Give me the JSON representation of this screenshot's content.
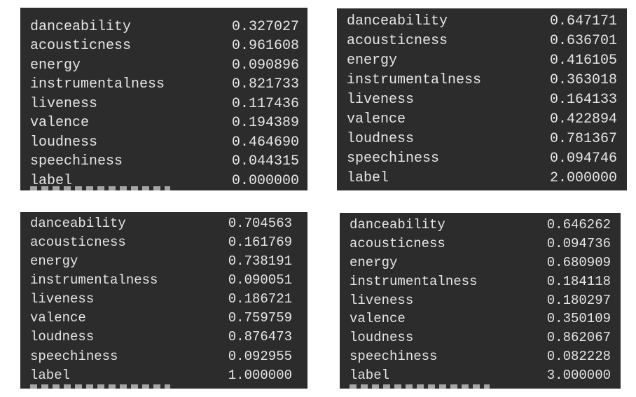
{
  "panels": [
    {
      "rows": [
        {
          "key": "danceability",
          "value": "0.327027"
        },
        {
          "key": "acousticness",
          "value": "0.961608"
        },
        {
          "key": "energy",
          "value": "0.090896"
        },
        {
          "key": "instrumentalness",
          "value": "0.821733"
        },
        {
          "key": "liveness",
          "value": "0.117436"
        },
        {
          "key": "valence",
          "value": "0.194389"
        },
        {
          "key": "loudness",
          "value": "0.464690"
        },
        {
          "key": "speechiness",
          "value": "0.044315"
        },
        {
          "key": "label",
          "value": "0.000000"
        }
      ]
    },
    {
      "rows": [
        {
          "key": "danceability",
          "value": "0.647171"
        },
        {
          "key": "acousticness",
          "value": "0.636701"
        },
        {
          "key": "energy",
          "value": "0.416105"
        },
        {
          "key": "instrumentalness",
          "value": "0.363018"
        },
        {
          "key": "liveness",
          "value": "0.164133"
        },
        {
          "key": "valence",
          "value": "0.422894"
        },
        {
          "key": "loudness",
          "value": "0.781367"
        },
        {
          "key": "speechiness",
          "value": "0.094746"
        },
        {
          "key": "label",
          "value": "2.000000"
        }
      ]
    },
    {
      "rows": [
        {
          "key": "danceability",
          "value": "0.704563"
        },
        {
          "key": "acousticness",
          "value": "0.161769"
        },
        {
          "key": "energy",
          "value": "0.738191"
        },
        {
          "key": "instrumentalness",
          "value": "0.090051"
        },
        {
          "key": "liveness",
          "value": "0.186721"
        },
        {
          "key": "valence",
          "value": "0.759759"
        },
        {
          "key": "loudness",
          "value": "0.876473"
        },
        {
          "key": "speechiness",
          "value": "0.092955"
        },
        {
          "key": "label",
          "value": "1.000000"
        }
      ]
    },
    {
      "rows": [
        {
          "key": "danceability",
          "value": "0.646262"
        },
        {
          "key": "acousticness",
          "value": "0.094736"
        },
        {
          "key": "energy",
          "value": "0.680909"
        },
        {
          "key": "instrumentalness",
          "value": "0.184118"
        },
        {
          "key": "liveness",
          "value": "0.180297"
        },
        {
          "key": "valence",
          "value": "0.350109"
        },
        {
          "key": "loudness",
          "value": "0.862067"
        },
        {
          "key": "speechiness",
          "value": "0.082228"
        },
        {
          "key": "label",
          "value": "3.000000"
        }
      ]
    }
  ],
  "colors": {
    "panel_bg": "#2c2c2c",
    "text": "#e6e6e6",
    "page_bg": "#ffffff"
  }
}
